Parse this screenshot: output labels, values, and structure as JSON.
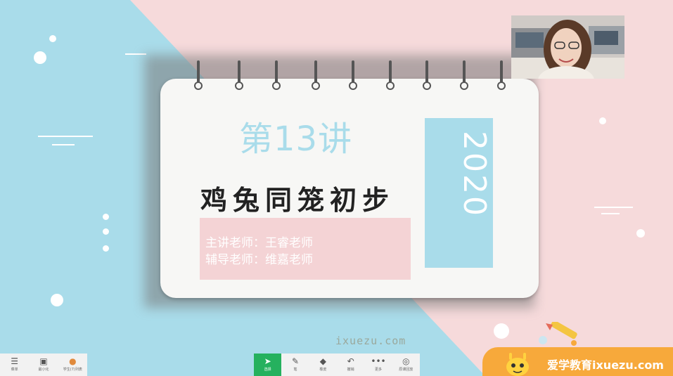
{
  "slide": {
    "lecture_number": "第13讲",
    "title": "鸡兔同笼初步",
    "year": "2020",
    "lead_teacher": "主讲老师：王睿老师",
    "assistant_teacher": "辅导老师：维嘉老师"
  },
  "watermark": {
    "url": "ixuezu.com"
  },
  "toolbar_left": [
    {
      "icon": "menu-icon",
      "label": "菜单"
    },
    {
      "icon": "minimize-icon",
      "label": "最小化"
    },
    {
      "icon": "avatar-icon",
      "label": "学生(7)列表"
    }
  ],
  "toolbar_center": [
    {
      "icon": "cursor-icon",
      "label": "选择",
      "active": true
    },
    {
      "icon": "pen-icon",
      "label": "笔"
    },
    {
      "icon": "eraser-icon",
      "label": "橡皮"
    },
    {
      "icon": "undo-icon",
      "label": "撤销"
    },
    {
      "icon": "more-icon",
      "label": "更多"
    },
    {
      "icon": "record-icon",
      "label": "原课回放"
    }
  ],
  "brand": {
    "text": "爱学教育ixuezu.com",
    "color": "#f7a93b"
  },
  "colors": {
    "blue": "#a9dcea",
    "pink": "#f6dadb",
    "active": "#25b15e"
  }
}
